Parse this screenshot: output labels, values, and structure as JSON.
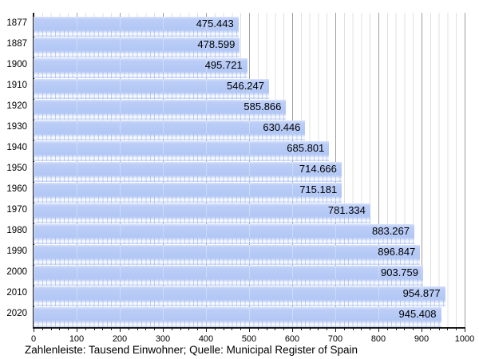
{
  "chart_data": {
    "type": "bar",
    "orientation": "horizontal",
    "title": "",
    "caption": "Zahlenleiste: Tausend Einwohner; Quelle: Municipal Register of Spain",
    "categories": [
      "1877",
      "1887",
      "1900",
      "1910",
      "1920",
      "1930",
      "1940",
      "1950",
      "1960",
      "1970",
      "1980",
      "1990",
      "2000",
      "2010",
      "2020"
    ],
    "values": [
      475.443,
      478.599,
      495.721,
      546.247,
      585.866,
      630.446,
      685.801,
      714.666,
      715.181,
      781.334,
      883.267,
      896.847,
      903.759,
      954.877,
      945.408
    ],
    "value_labels": [
      "475.443",
      "478.599",
      "495.721",
      "546.247",
      "585.866",
      "630.446",
      "685.801",
      "714.666",
      "715.181",
      "781.334",
      "883.267",
      "896.847",
      "903.759",
      "954.877",
      "945.408"
    ],
    "xlabel": "",
    "ylabel": "",
    "xlim": [
      0,
      1000
    ],
    "x_ticks": [
      0,
      100,
      200,
      300,
      400,
      500,
      600,
      700,
      800,
      900,
      1000
    ],
    "x_minor_step": 20,
    "grid": "vertical; minor every 20, major every 100",
    "legend": "none",
    "colors": {
      "bar": "#b5c9f5",
      "ruler_strip": "#e8eefc",
      "grid_minor": "#e0e0e0",
      "grid_major": "#9e9e9e",
      "axis": "#1a1a1a",
      "text": "#000000",
      "background": "#ffffff"
    }
  }
}
